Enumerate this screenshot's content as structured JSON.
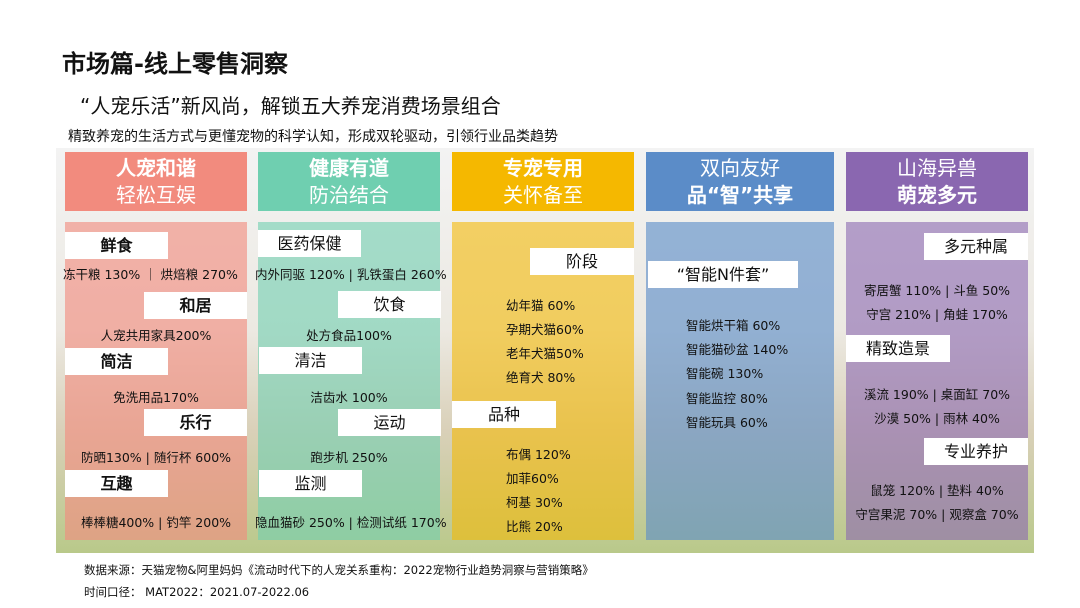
{
  "title": "市场篇-线上零售洞察",
  "subtitle": "“人宠乐活”新风尚，解锁五大养宠消费场景组合",
  "tagline": "精致养宠的生活方式与更懂宠物的科学认知，形成双轮驱动，引领行业品类趋势",
  "colors": {
    "pink": "#f28b7e",
    "green": "#6fcfb0",
    "yellow": "#f5b800",
    "blue": "#5b8cc8",
    "purple": "#8a67b0"
  },
  "columns": [
    {
      "h1": "人宠和谐",
      "h2": "轻松互娱",
      "items": [
        {
          "label": "鲜食",
          "value": "冻干粮 130% ｜ 烘焙粮 270%"
        },
        {
          "label": "和居",
          "value": "人宠共用家具200%"
        },
        {
          "label": "简洁",
          "value": "免洗用品170%"
        },
        {
          "label": "乐行",
          "value": "防晒130% | 随行杯 600%"
        },
        {
          "label": "互趣",
          "value": "棒棒糖400% | 钓竿 200%"
        }
      ]
    },
    {
      "h1": "健康有道",
      "h2": "防治结合",
      "items": [
        {
          "label": "医药保健",
          "value": "内外同驱 120% | 乳铁蛋白 260%"
        },
        {
          "label": "饮食",
          "value": "处方食品100%"
        },
        {
          "label": "清洁",
          "value": "洁齿水 100%"
        },
        {
          "label": "运动",
          "value": "跑步机 250%"
        },
        {
          "label": "监测",
          "value": "隐血猫砂 250% | 检测试纸 170%"
        }
      ]
    },
    {
      "h1": "专宠专用",
      "h2": "关怀备至",
      "groups": [
        {
          "label": "阶段",
          "values": [
            "幼年猫 60%",
            "孕期犬猫60%",
            "老年犬猫50%",
            "绝育犬 80%"
          ]
        },
        {
          "label": "品种",
          "values": [
            "布偶 120%",
            "加菲60%",
            "柯基 30%",
            "比熊 20%"
          ]
        }
      ]
    },
    {
      "h1": "双向友好",
      "h2": "品“智”共享",
      "groups": [
        {
          "label": "“智能N件套”",
          "values": [
            "智能烘干箱 60%",
            "智能猫砂盆 140%",
            "智能碗 130%",
            "智能监控 80%",
            "智能玩具 60%"
          ]
        }
      ]
    },
    {
      "h1": "山海异兽",
      "h2": "萌宠多元",
      "groups": [
        {
          "label": "多元种属",
          "values": [
            "寄居蟹 110% | 斗鱼 50%",
            "守宫 210% | 角蛙 170%"
          ]
        },
        {
          "label": "精致造景",
          "values": [
            "溪流 190% | 桌面缸 70%",
            "沙漠 50% | 雨林 40%"
          ]
        },
        {
          "label": "专业养护",
          "values": [
            "鼠笼 120% | 垫料 40%",
            "守宫果泥 70% | 观察盒 70%"
          ]
        }
      ]
    }
  ],
  "footer": {
    "source": "数据来源：天猫宠物&阿里妈妈《流动时代下的人宠关系重构：2022宠物行业趋势洞察与营销策略》",
    "period": "时间口径： MAT2022：2021.07-2022.06"
  }
}
